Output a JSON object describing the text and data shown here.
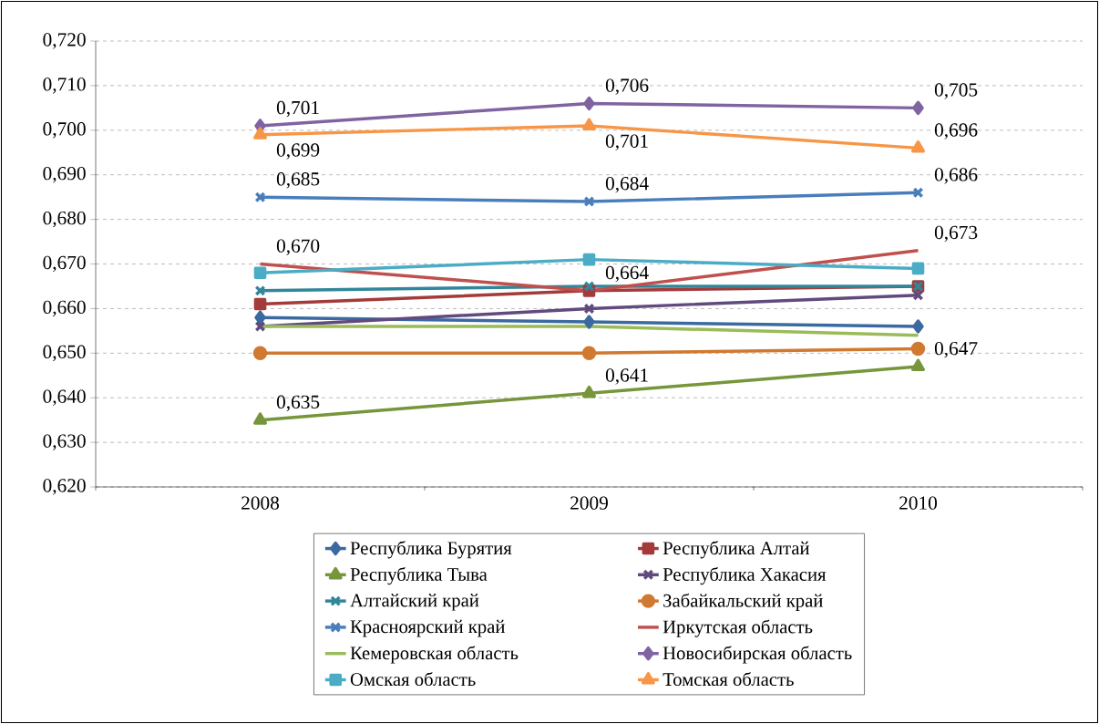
{
  "chart_data": {
    "type": "line",
    "categories": [
      "2008",
      "2009",
      "2010"
    ],
    "ylim": [
      0.62,
      0.72
    ],
    "yticks": [
      {
        "value": 0.62,
        "label": "0,620"
      },
      {
        "value": 0.63,
        "label": "0,630"
      },
      {
        "value": 0.64,
        "label": "0,640"
      },
      {
        "value": 0.65,
        "label": "0,650"
      },
      {
        "value": 0.66,
        "label": "0,660"
      },
      {
        "value": 0.67,
        "label": "0,670"
      },
      {
        "value": 0.68,
        "label": "0,680"
      },
      {
        "value": 0.69,
        "label": "0,690"
      },
      {
        "value": 0.7,
        "label": "0,700"
      },
      {
        "value": 0.71,
        "label": "0,710"
      },
      {
        "value": 0.72,
        "label": "0,720"
      }
    ],
    "grid": "y",
    "legend": "bottom",
    "series": [
      {
        "name": "Республика Бурятия",
        "color": "#3a6aa0",
        "marker": "diamond",
        "values": [
          0.658,
          0.657,
          0.656
        ]
      },
      {
        "name": "Республика Алтай",
        "color": "#a33b3a",
        "marker": "square",
        "values": [
          0.661,
          0.664,
          0.665
        ],
        "value_labels": [
          null,
          "0,664",
          null
        ]
      },
      {
        "name": "Республика Тыва",
        "color": "#77963b",
        "marker": "triangle",
        "values": [
          0.635,
          0.641,
          0.647
        ],
        "value_labels": [
          "0,635",
          "0,641",
          "0,647"
        ]
      },
      {
        "name": "Республика Хакасия",
        "color": "#614a7e",
        "marker": "cross",
        "values": [
          0.656,
          0.66,
          0.663
        ]
      },
      {
        "name": "Алтайский край",
        "color": "#31869b",
        "marker": "cross",
        "values": [
          0.664,
          0.665,
          0.665
        ]
      },
      {
        "name": "Забайкальский край",
        "color": "#d07930",
        "marker": "circle",
        "values": [
          0.65,
          0.65,
          0.651
        ]
      },
      {
        "name": "Красноярский край",
        "color": "#4a7ebb",
        "marker": "cross",
        "values": [
          0.685,
          0.684,
          0.686
        ],
        "value_labels": [
          "0,685",
          "0,684",
          "0,686"
        ]
      },
      {
        "name": "Иркутская область",
        "color": "#c0504d",
        "marker": "none",
        "values": [
          0.67,
          0.664,
          0.673
        ],
        "value_labels": [
          "0,670",
          null,
          "0,673"
        ]
      },
      {
        "name": "Кемеровская область",
        "color": "#9bbb59",
        "marker": "none",
        "values": [
          0.656,
          0.656,
          0.654
        ]
      },
      {
        "name": "Новосибирская область",
        "color": "#8064a2",
        "marker": "diamond",
        "values": [
          0.701,
          0.706,
          0.705
        ],
        "value_labels": [
          "0,701",
          "0,706",
          "0,705"
        ]
      },
      {
        "name": "Омская область",
        "color": "#4bacc6",
        "marker": "square",
        "values": [
          0.668,
          0.671,
          0.669
        ]
      },
      {
        "name": "Томская область",
        "color": "#f79646",
        "marker": "triangle",
        "values": [
          0.699,
          0.701,
          0.696
        ],
        "value_labels": [
          "0,699",
          "0,701",
          "0,696"
        ]
      }
    ]
  }
}
